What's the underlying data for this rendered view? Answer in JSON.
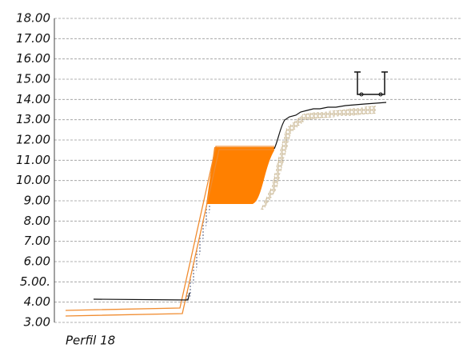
{
  "chart_data": {
    "type": "profile",
    "title": "Perfil  18",
    "ylim": [
      3,
      18
    ],
    "yticks": [
      {
        "value": 3,
        "label": "3.00"
      },
      {
        "value": 4,
        "label": "4.00"
      },
      {
        "value": 5,
        "label": "5.00."
      },
      {
        "value": 6,
        "label": "6.00"
      },
      {
        "value": 7,
        "label": "7.00"
      },
      {
        "value": 8,
        "label": "8.00"
      },
      {
        "value": 9,
        "label": "9.00"
      },
      {
        "value": 10,
        "label": "10.00"
      },
      {
        "value": 11,
        "label": "11.00"
      },
      {
        "value": 12,
        "label": "12.00"
      },
      {
        "value": 13,
        "label": "13.00"
      },
      {
        "value": 14,
        "label": "14.00"
      },
      {
        "value": 15,
        "label": "15.00"
      },
      {
        "value": 16,
        "label": "16.00"
      },
      {
        "value": 17,
        "label": "17.00"
      },
      {
        "value": 18,
        "label": "18.00"
      }
    ],
    "grid": true
  }
}
